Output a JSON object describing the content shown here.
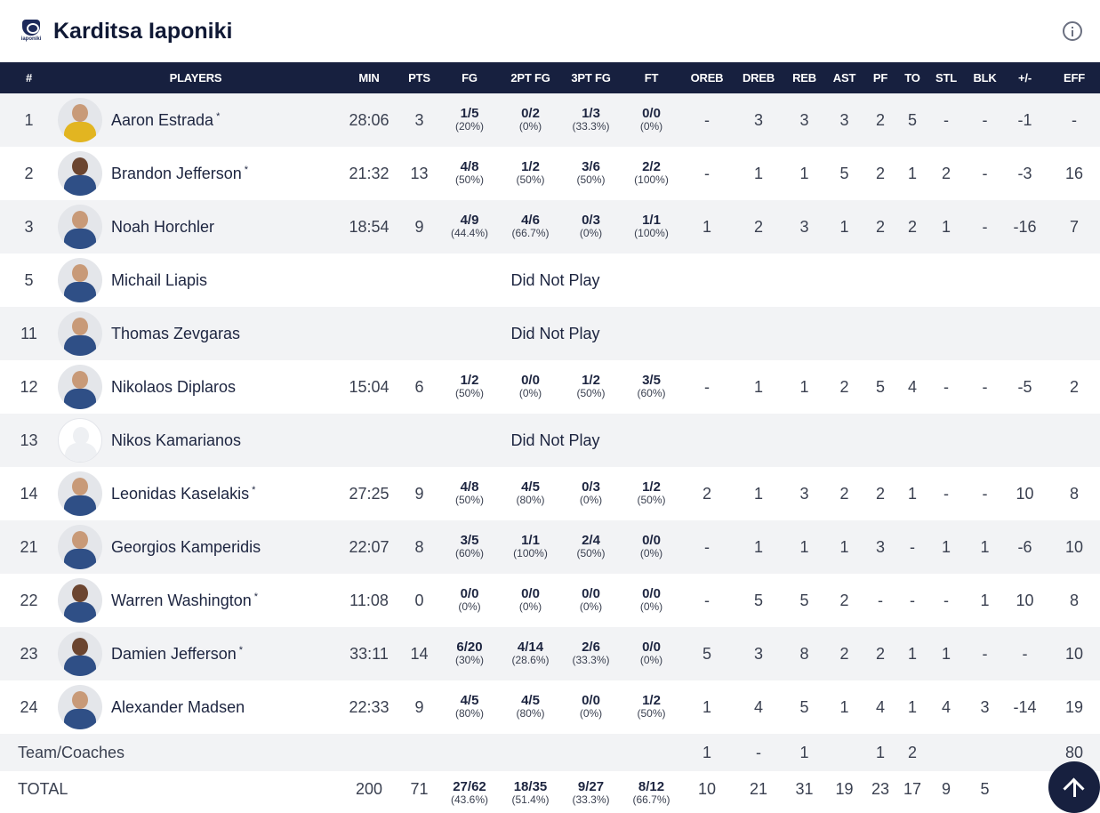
{
  "team": {
    "name": "Karditsa Iaponiki",
    "logo_text": "iaponiki"
  },
  "headers": [
    "#",
    "PLAYERS",
    "MIN",
    "PTS",
    "FG",
    "2PT FG",
    "3PT FG",
    "FT",
    "OREB",
    "DREB",
    "REB",
    "AST",
    "PF",
    "TO",
    "STL",
    "BLK",
    "+/-",
    "EFF"
  ],
  "starter_mark": "*",
  "dnp_label": "Did Not Play",
  "players": [
    {
      "num": "1",
      "name": "Aaron Estrada",
      "starter": true,
      "avatar": "gold",
      "min": "28:06",
      "pts": "3",
      "fg": [
        "1/5",
        "(20%)"
      ],
      "fg2": [
        "0/2",
        "(0%)"
      ],
      "fg3": [
        "1/3",
        "(33.3%)"
      ],
      "ft": [
        "0/0",
        "(0%)"
      ],
      "oreb": "-",
      "dreb": "3",
      "reb": "3",
      "ast": "3",
      "pf": "2",
      "to": "5",
      "stl": "-",
      "blk": "-",
      "pm": "-1",
      "eff": "-"
    },
    {
      "num": "2",
      "name": "Brandon Jefferson",
      "starter": true,
      "avatar": "dark",
      "min": "21:32",
      "pts": "13",
      "fg": [
        "4/8",
        "(50%)"
      ],
      "fg2": [
        "1/2",
        "(50%)"
      ],
      "fg3": [
        "3/6",
        "(50%)"
      ],
      "ft": [
        "2/2",
        "(100%)"
      ],
      "oreb": "-",
      "dreb": "1",
      "reb": "1",
      "ast": "5",
      "pf": "2",
      "to": "1",
      "stl": "2",
      "blk": "-",
      "pm": "-3",
      "eff": "16"
    },
    {
      "num": "3",
      "name": "Noah Horchler",
      "starter": false,
      "avatar": "light",
      "min": "18:54",
      "pts": "9",
      "fg": [
        "4/9",
        "(44.4%)"
      ],
      "fg2": [
        "4/6",
        "(66.7%)"
      ],
      "fg3": [
        "0/3",
        "(0%)"
      ],
      "ft": [
        "1/1",
        "(100%)"
      ],
      "oreb": "1",
      "dreb": "2",
      "reb": "3",
      "ast": "1",
      "pf": "2",
      "to": "2",
      "stl": "1",
      "blk": "-",
      "pm": "-16",
      "eff": "7"
    },
    {
      "num": "5",
      "name": "Michail Liapis",
      "starter": false,
      "avatar": "light",
      "dnp": true
    },
    {
      "num": "11",
      "name": "Thomas Zevgaras",
      "starter": false,
      "avatar": "light",
      "dnp": true
    },
    {
      "num": "12",
      "name": "Nikolaos Diplaros",
      "starter": false,
      "avatar": "light",
      "min": "15:04",
      "pts": "6",
      "fg": [
        "1/2",
        "(50%)"
      ],
      "fg2": [
        "0/0",
        "(0%)"
      ],
      "fg3": [
        "1/2",
        "(50%)"
      ],
      "ft": [
        "3/5",
        "(60%)"
      ],
      "oreb": "-",
      "dreb": "1",
      "reb": "1",
      "ast": "2",
      "pf": "5",
      "to": "4",
      "stl": "-",
      "blk": "-",
      "pm": "-5",
      "eff": "2"
    },
    {
      "num": "13",
      "name": "Nikos Kamarianos",
      "starter": false,
      "avatar": "empty",
      "dnp": true
    },
    {
      "num": "14",
      "name": "Leonidas Kaselakis",
      "starter": true,
      "avatar": "light",
      "min": "27:25",
      "pts": "9",
      "fg": [
        "4/8",
        "(50%)"
      ],
      "fg2": [
        "4/5",
        "(80%)"
      ],
      "fg3": [
        "0/3",
        "(0%)"
      ],
      "ft": [
        "1/2",
        "(50%)"
      ],
      "oreb": "2",
      "dreb": "1",
      "reb": "3",
      "ast": "2",
      "pf": "2",
      "to": "1",
      "stl": "-",
      "blk": "-",
      "pm": "10",
      "eff": "8"
    },
    {
      "num": "21",
      "name": "Georgios Kamperidis",
      "starter": false,
      "avatar": "light",
      "min": "22:07",
      "pts": "8",
      "fg": [
        "3/5",
        "(60%)"
      ],
      "fg2": [
        "1/1",
        "(100%)"
      ],
      "fg3": [
        "2/4",
        "(50%)"
      ],
      "ft": [
        "0/0",
        "(0%)"
      ],
      "oreb": "-",
      "dreb": "1",
      "reb": "1",
      "ast": "1",
      "pf": "3",
      "to": "-",
      "stl": "1",
      "blk": "1",
      "pm": "-6",
      "eff": "10"
    },
    {
      "num": "22",
      "name": "Warren Washington",
      "starter": true,
      "avatar": "dark",
      "min": "11:08",
      "pts": "0",
      "fg": [
        "0/0",
        "(0%)"
      ],
      "fg2": [
        "0/0",
        "(0%)"
      ],
      "fg3": [
        "0/0",
        "(0%)"
      ],
      "ft": [
        "0/0",
        "(0%)"
      ],
      "oreb": "-",
      "dreb": "5",
      "reb": "5",
      "ast": "2",
      "pf": "-",
      "to": "-",
      "stl": "-",
      "blk": "1",
      "pm": "10",
      "eff": "8"
    },
    {
      "num": "23",
      "name": "Damien Jefferson",
      "starter": true,
      "avatar": "dark",
      "min": "33:11",
      "pts": "14",
      "fg": [
        "6/20",
        "(30%)"
      ],
      "fg2": [
        "4/14",
        "(28.6%)"
      ],
      "fg3": [
        "2/6",
        "(33.3%)"
      ],
      "ft": [
        "0/0",
        "(0%)"
      ],
      "oreb": "5",
      "dreb": "3",
      "reb": "8",
      "ast": "2",
      "pf": "2",
      "to": "1",
      "stl": "1",
      "blk": "-",
      "pm": "-",
      "eff": "10"
    },
    {
      "num": "24",
      "name": "Alexander Madsen",
      "starter": false,
      "avatar": "light",
      "min": "22:33",
      "pts": "9",
      "fg": [
        "4/5",
        "(80%)"
      ],
      "fg2": [
        "4/5",
        "(80%)"
      ],
      "fg3": [
        "0/0",
        "(0%)"
      ],
      "ft": [
        "1/2",
        "(50%)"
      ],
      "oreb": "1",
      "dreb": "4",
      "reb": "5",
      "ast": "1",
      "pf": "4",
      "to": "1",
      "stl": "4",
      "blk": "3",
      "pm": "-14",
      "eff": "19"
    }
  ],
  "team_row": {
    "label": "Team/Coaches",
    "oreb": "1",
    "dreb": "-",
    "reb": "1",
    "ast": "",
    "pf": "1",
    "to": "2",
    "stl": "",
    "blk": "",
    "pm": "",
    "eff": "80"
  },
  "total_row": {
    "label": "TOTAL",
    "min": "200",
    "pts": "71",
    "fg": [
      "27/62",
      "(43.6%)"
    ],
    "fg2": [
      "18/35",
      "(51.4%)"
    ],
    "fg3": [
      "9/27",
      "(33.3%)"
    ],
    "ft": [
      "8/12",
      "(66.7%)"
    ],
    "oreb": "10",
    "dreb": "21",
    "reb": "31",
    "ast": "19",
    "pf": "23",
    "to": "17",
    "stl": "9",
    "blk": "5"
  }
}
